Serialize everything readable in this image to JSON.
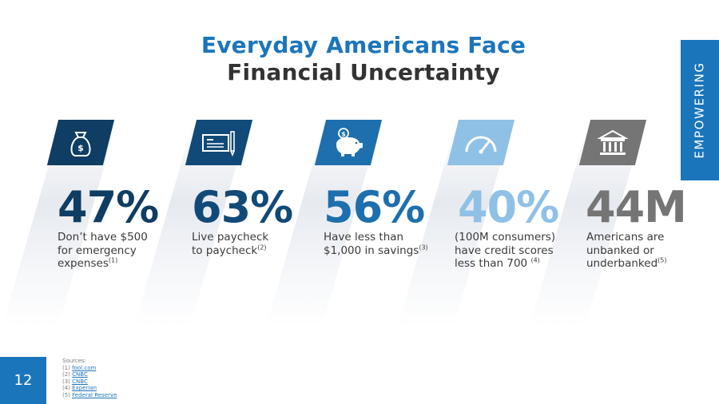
{
  "title": {
    "line1": "Everyday Americans Face",
    "line2": "Financial Uncertainty"
  },
  "side_tab": "EMPOWERING",
  "colors": {
    "brand_blue": "#1b75bb",
    "dark_navy": "#0f3d63",
    "mid_blue": "#1d6fae",
    "light_blue": "#8fc1e6",
    "gray": "#757575",
    "text_dark": "#333333"
  },
  "stats": [
    {
      "icon": "money-bag-icon",
      "value": "47%",
      "desc_lines": [
        "Don’t have $500",
        "for emergency"
      ],
      "desc_last": "expenses",
      "ref": "(1)"
    },
    {
      "icon": "paycheck-icon",
      "value": "63%",
      "desc_lines": [
        "Live paycheck"
      ],
      "desc_last": "to paycheck",
      "ref": "(2)"
    },
    {
      "icon": "piggy-bank-icon",
      "value": "56%",
      "desc_lines": [
        "Have less than"
      ],
      "desc_last": "$1,000 in savings",
      "ref": "(3)"
    },
    {
      "icon": "speedometer-icon",
      "value": "40%",
      "desc_lines": [
        "(100M consumers)",
        "have credit scores"
      ],
      "desc_last": "less than 700 ",
      "ref": "(4)"
    },
    {
      "icon": "bank-building-icon",
      "value": "44M",
      "desc_lines": [
        "Americans are",
        "unbanked or"
      ],
      "desc_last": "underbanked",
      "ref": "(5)"
    }
  ],
  "page_number": "12",
  "sources": {
    "heading": "Sources:",
    "items": [
      {
        "num": "(1)",
        "label": "fool.com"
      },
      {
        "num": "(2)",
        "label": "CNBC"
      },
      {
        "num": "(3)",
        "label": "CNBC"
      },
      {
        "num": "(4)",
        "label": "Experian"
      },
      {
        "num": "(5)",
        "label": "Federal Reserve"
      }
    ]
  }
}
